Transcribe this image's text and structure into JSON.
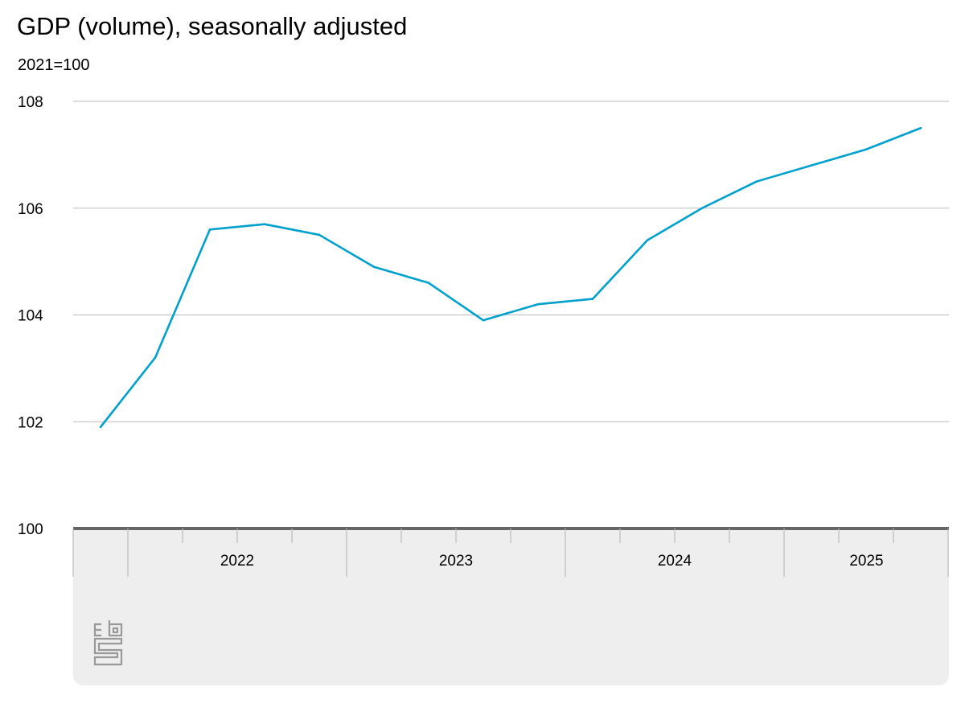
{
  "chart_data": {
    "type": "line",
    "title": "GDP (volume), seasonally adjusted",
    "subtitle": "2021=100",
    "xlabel": "",
    "ylabel": "",
    "ylim": [
      100,
      108
    ],
    "yticks": [
      100,
      102,
      104,
      106,
      108
    ],
    "ytick_labels": [
      "100",
      "102",
      "104",
      "106",
      "108"
    ],
    "grid": true,
    "x": [
      "2021 Q4",
      "2022 Q1",
      "2022 Q2",
      "2022 Q3",
      "2022 Q4",
      "2023 Q1",
      "2023 Q2",
      "2023 Q3",
      "2023 Q4",
      "2024 Q1",
      "2024 Q2",
      "2024 Q3",
      "2024 Q4",
      "2025 Q1",
      "2025 Q2",
      "2025 Q3"
    ],
    "year_labels": [
      "2022",
      "2023",
      "2024",
      "2025"
    ],
    "series": [
      {
        "values": [
          101.9,
          103.2,
          105.6,
          105.7,
          105.5,
          104.9,
          104.6,
          103.9,
          104.2,
          104.3,
          105.4,
          106.0,
          106.5,
          106.8,
          107.1,
          107.5
        ],
        "color": "#00a1cd"
      }
    ]
  },
  "colors": {
    "line": "#00a1cd",
    "grid": "#bbbbbb",
    "axis_panel": "#eeeeee",
    "baseline": "#666666",
    "logo": "#999999"
  },
  "logo": "cbs"
}
